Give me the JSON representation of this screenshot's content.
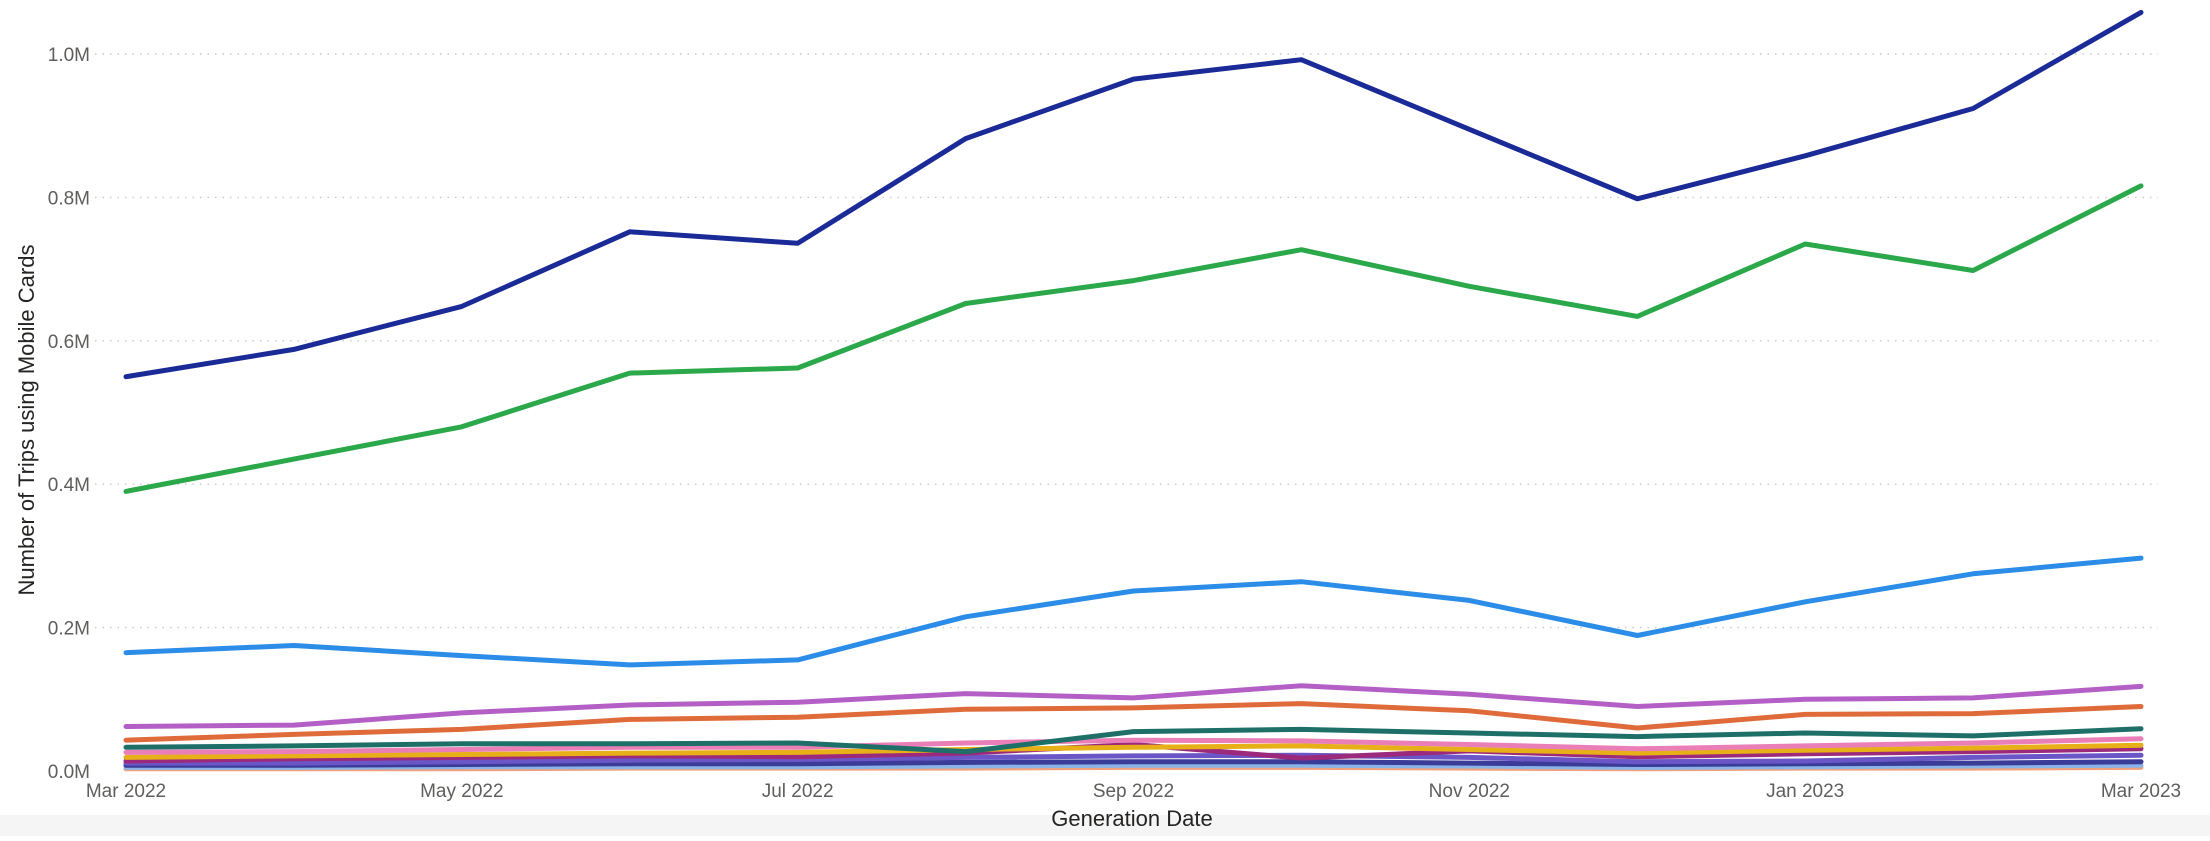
{
  "chart_data": {
    "type": "line",
    "title": "",
    "xlabel": "Generation Date",
    "ylabel": "Number of Trips using Mobile Cards",
    "x": [
      "Mar 2022",
      "Apr 2022",
      "May 2022",
      "Jun 2022",
      "Jul 2022",
      "Aug 2022",
      "Sep 2022",
      "Oct 2022",
      "Nov 2022",
      "Dec 2022",
      "Jan 2023",
      "Feb 2023",
      "Mar 2023"
    ],
    "x_tick_labels": [
      "Mar 2022",
      "May 2022",
      "Jul 2022",
      "Sep 2022",
      "Nov 2022",
      "Jan 2023",
      "Mar 2023"
    ],
    "y_ticks": [
      0,
      200000,
      400000,
      600000,
      800000,
      1000000
    ],
    "y_tick_labels": [
      "0.0M",
      "0.2M",
      "0.4M",
      "0.6M",
      "0.8M",
      "1.0M"
    ],
    "ylim": [
      0,
      1060000
    ],
    "grid": "horizontal dotted",
    "legend": "none",
    "series": [
      {
        "color": "#1a2a96",
        "values": [
          550000,
          588000,
          648000,
          752000,
          736000,
          882000,
          965000,
          992000,
          895000,
          798000,
          858000,
          924000,
          1058000
        ]
      },
      {
        "color": "#2ba84a",
        "values": [
          390000,
          435000,
          480000,
          555000,
          562000,
          652000,
          684000,
          727000,
          676000,
          634000,
          735000,
          698000,
          816000
        ]
      },
      {
        "color": "#2b8de8",
        "values": [
          165000,
          175000,
          161000,
          148000,
          155000,
          215000,
          251000,
          264000,
          238000,
          189000,
          236000,
          275000,
          297000
        ]
      },
      {
        "color": "#b35fc6",
        "values": [
          62000,
          64000,
          81000,
          92000,
          96000,
          108000,
          102000,
          119000,
          107000,
          90000,
          100000,
          102000,
          118000
        ]
      },
      {
        "color": "#e06b3a",
        "values": [
          43000,
          51000,
          58000,
          72000,
          75000,
          86000,
          88000,
          94000,
          84000,
          60000,
          79000,
          80000,
          90000
        ]
      },
      {
        "color": "#1e6f68",
        "values": [
          33000,
          35000,
          38000,
          38000,
          39000,
          27000,
          55000,
          58000,
          53000,
          48000,
          53000,
          49000,
          59000
        ]
      },
      {
        "color": "#ea7fb8",
        "values": [
          26000,
          27000,
          30000,
          33000,
          33000,
          39000,
          43000,
          42000,
          37000,
          31000,
          35000,
          39000,
          45000
        ]
      },
      {
        "color": "#e8b018",
        "values": [
          19000,
          21000,
          23000,
          25000,
          26000,
          30000,
          33000,
          35000,
          30000,
          25000,
          29000,
          32000,
          36000
        ]
      },
      {
        "color": "#9b2a7c",
        "values": [
          14000,
          17000,
          19000,
          21000,
          20000,
          25000,
          37000,
          18000,
          28000,
          20000,
          24000,
          27000,
          31000
        ]
      },
      {
        "color": "#6b56c8",
        "values": [
          11000,
          11000,
          13000,
          15000,
          16000,
          19000,
          21000,
          22000,
          19000,
          13000,
          14000,
          19000,
          22000
        ]
      },
      {
        "color": "#3b3b98",
        "values": [
          8000,
          8000,
          9000,
          10000,
          10000,
          12000,
          13000,
          13000,
          11000,
          9000,
          10000,
          11000,
          13000
        ]
      },
      {
        "color": "#8ab4e8",
        "values": [
          5000,
          5000,
          6000,
          6000,
          6000,
          7000,
          8000,
          8000,
          7000,
          5000,
          6000,
          7000,
          8000
        ]
      },
      {
        "color": "#f2a07a",
        "values": [
          3000,
          3000,
          3000,
          4000,
          4000,
          4000,
          5000,
          5000,
          4000,
          3000,
          4000,
          4000,
          5000
        ]
      }
    ]
  }
}
